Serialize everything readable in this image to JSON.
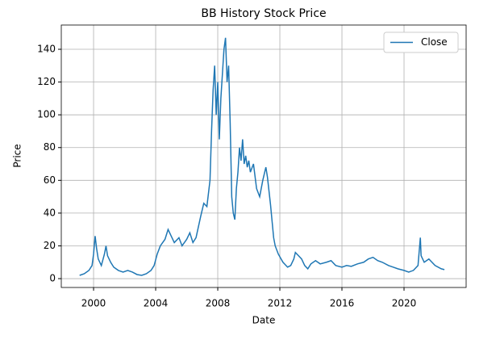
{
  "chart_data": {
    "type": "line",
    "title": "BB History Stock Price",
    "x_label": "Date",
    "y_label": "Price",
    "x": [
      1999.1,
      1999.4,
      1999.7,
      1999.9,
      2000.0,
      2000.1,
      2000.2,
      2000.3,
      2000.5,
      2000.7,
      2000.8,
      2000.9,
      2001.1,
      2001.3,
      2001.6,
      2001.9,
      2002.2,
      2002.5,
      2002.8,
      2003.1,
      2003.4,
      2003.7,
      2003.9,
      2004.1,
      2004.3,
      2004.6,
      2004.8,
      2005.0,
      2005.2,
      2005.5,
      2005.7,
      2006.0,
      2006.2,
      2006.4,
      2006.6,
      2006.9,
      2007.1,
      2007.3,
      2007.5,
      2007.6,
      2007.7,
      2007.8,
      2007.9,
      2008.0,
      2008.1,
      2008.2,
      2008.3,
      2008.4,
      2008.5,
      2008.6,
      2008.7,
      2008.8,
      2008.9,
      2009.0,
      2009.1,
      2009.2,
      2009.3,
      2009.4,
      2009.5,
      2009.6,
      2009.7,
      2009.8,
      2009.9,
      2010.0,
      2010.1,
      2010.3,
      2010.5,
      2010.7,
      2010.9,
      2011.1,
      2011.2,
      2011.4,
      2011.5,
      2011.6,
      2011.7,
      2011.9,
      2012.2,
      2012.5,
      2012.7,
      2012.9,
      2013.0,
      2013.2,
      2013.4,
      2013.6,
      2013.8,
      2014.0,
      2014.3,
      2014.6,
      2015.0,
      2015.3,
      2015.6,
      2016.0,
      2016.3,
      2016.6,
      2017.0,
      2017.4,
      2017.7,
      2018.0,
      2018.3,
      2018.6,
      2019.0,
      2019.3,
      2019.6,
      2020.0,
      2020.3,
      2020.6,
      2020.9,
      2021.05,
      2021.1,
      2021.3,
      2021.6,
      2022.0,
      2022.4,
      2022.6
    ],
    "series": [
      {
        "name": "Close",
        "color": "#1f77b4",
        "values": [
          2,
          3,
          5,
          8,
          15,
          26,
          18,
          12,
          8,
          15,
          20,
          14,
          10,
          7,
          5,
          4,
          5,
          4,
          2.5,
          2,
          3,
          5,
          8,
          15,
          20,
          24,
          30,
          26,
          22,
          25,
          20,
          24,
          28,
          22,
          25,
          38,
          46,
          44,
          60,
          90,
          115,
          130,
          100,
          120,
          85,
          110,
          125,
          140,
          147,
          120,
          130,
          95,
          50,
          40,
          36,
          55,
          65,
          80,
          72,
          85,
          70,
          75,
          68,
          72,
          65,
          70,
          55,
          50,
          60,
          68,
          62,
          45,
          35,
          25,
          20,
          15,
          10,
          7,
          8,
          12,
          16,
          14,
          12,
          8,
          6,
          9,
          11,
          9,
          10,
          11,
          8,
          7,
          8,
          7.5,
          9,
          10,
          12,
          13,
          11,
          10,
          8,
          7,
          6,
          5,
          4,
          5,
          8,
          25,
          14,
          10,
          12,
          8,
          6,
          5.5
        ]
      }
    ],
    "xlim": [
      1997.92,
      2024.0
    ],
    "xticks": [
      2000,
      2004,
      2008,
      2012,
      2016,
      2020
    ],
    "ylim": [
      -5.4,
      154.8
    ],
    "yticks": [
      0,
      20,
      40,
      60,
      80,
      100,
      120,
      140
    ],
    "grid": true,
    "legend_position": "upper right"
  }
}
